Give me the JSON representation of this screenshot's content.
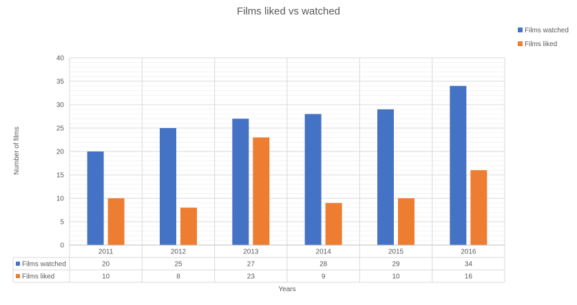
{
  "chart_data": {
    "type": "bar",
    "title": "Films liked vs watched",
    "xlabel": "Years",
    "ylabel": "Number of films",
    "categories": [
      "2011",
      "2012",
      "2013",
      "2014",
      "2015",
      "2016"
    ],
    "series": [
      {
        "name": "Films watched",
        "values": [
          20,
          25,
          27,
          28,
          29,
          34
        ],
        "color": "#4472C4"
      },
      {
        "name": "Films liked",
        "values": [
          10,
          8,
          23,
          9,
          10,
          16
        ],
        "color": "#ED7D31"
      }
    ],
    "ylim": [
      0,
      40
    ],
    "yticks": [
      0,
      5,
      10,
      15,
      20,
      25,
      30,
      35,
      40
    ],
    "grid": true,
    "legend_position": "top-right",
    "data_table": true,
    "gridline_color": "#d9d9d9",
    "axis_color": "#bfbfbf"
  }
}
